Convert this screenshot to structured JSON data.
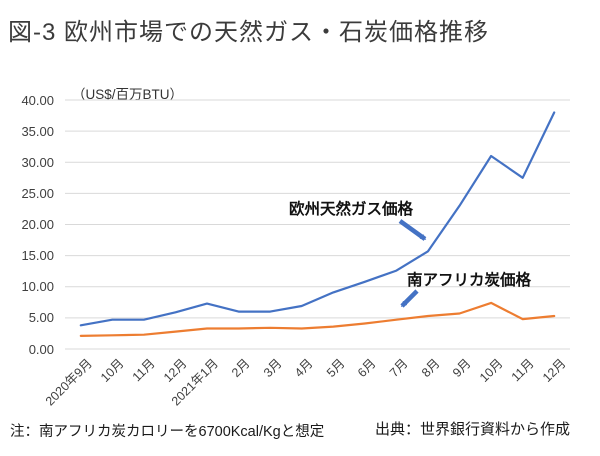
{
  "title": "図-3 欧州市場での天然ガス・石炭価格推移",
  "unit_label": "（US$/百万BTU）",
  "annotations": {
    "gas_label": "欧州天然ガス価格",
    "coal_label": "南アフリカ炭価格"
  },
  "footnote": "注：南アフリカ炭カロリーを6700Kcal/Kgと想定",
  "source": "出典：世界銀行資料から作成",
  "colors": {
    "gas_line": "#4472C4",
    "coal_line": "#ED7D31",
    "gridline": "#D9D9D9",
    "text": "#3f3f3f"
  },
  "chart_data": {
    "type": "line",
    "title": "図-3 欧州市場での天然ガス・石炭価格推移",
    "ylabel": "US$/百万BTU",
    "xlabel": "",
    "grid": true,
    "legend_position": "inline-annotations-with-arrows",
    "ylim": [
      0,
      40
    ],
    "ytick_step": 5,
    "yticks": [
      "0.00",
      "5.00",
      "10.00",
      "15.00",
      "20.00",
      "25.00",
      "30.00",
      "35.00",
      "40.00"
    ],
    "categories": [
      "2020年9月",
      "10月",
      "11月",
      "12月",
      "2021年1月",
      "2月",
      "3月",
      "4月",
      "5月",
      "6月",
      "7月",
      "8月",
      "9月",
      "10月",
      "11月",
      "12月"
    ],
    "series": [
      {
        "name": "欧州天然ガス価格",
        "color": "#4472C4",
        "values": [
          3.8,
          4.7,
          4.7,
          5.9,
          7.3,
          6.0,
          6.0,
          6.9,
          9.1,
          10.8,
          12.6,
          15.7,
          23.0,
          31.0,
          27.5,
          38.0
        ]
      },
      {
        "name": "南アフリカ炭価格",
        "color": "#ED7D31",
        "values": [
          2.1,
          2.2,
          2.3,
          2.8,
          3.3,
          3.3,
          3.4,
          3.3,
          3.6,
          4.1,
          4.7,
          5.3,
          5.7,
          7.4,
          4.8,
          5.3
        ]
      }
    ]
  }
}
